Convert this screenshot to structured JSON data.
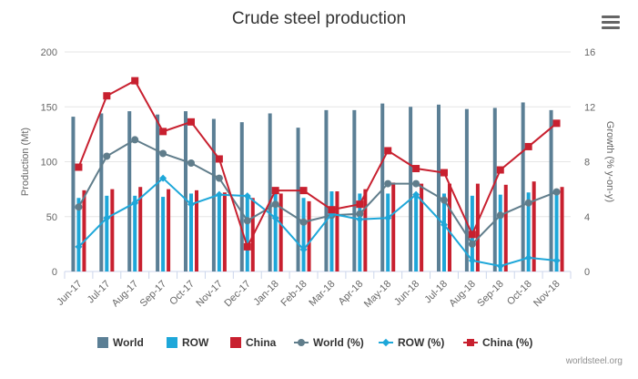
{
  "title": "Crude steel production",
  "menu_icon": "hamburger-menu-icon",
  "credit": "worldsteel.org",
  "chart_data": {
    "type": "bar",
    "title": "Crude steel production",
    "categories": [
      "Jun-17",
      "Jul-17",
      "Aug-17",
      "Sep-17",
      "Oct-17",
      "Nov-17",
      "Dec-17",
      "Jan-18",
      "Feb-18",
      "Mar-18",
      "Apr-18",
      "May-18",
      "Jun-18",
      "Jul-18",
      "Aug-18",
      "Sep-18",
      "Oct-18",
      "Nov-18"
    ],
    "y_left": {
      "label": "Production (Mt)",
      "min": 0,
      "max": 200,
      "ticks": [
        0,
        50,
        100,
        150,
        200
      ]
    },
    "y_right": {
      "label": "Growth (% y-on-y)",
      "min": 0,
      "max": 16,
      "ticks": [
        0,
        4,
        8,
        12,
        16
      ]
    },
    "grid": true,
    "legend_position": "bottom",
    "series": [
      {
        "name": "World",
        "type": "bar",
        "axis": "left",
        "color": "#5b7f95",
        "values": [
          141,
          144,
          146,
          143,
          146,
          139,
          136,
          144,
          131,
          147,
          147,
          153,
          150,
          152,
          148,
          149,
          154,
          147
        ]
      },
      {
        "name": "ROW",
        "type": "bar",
        "axis": "left",
        "color": "#1ea7d9",
        "values": [
          67,
          69,
          69,
          68,
          71,
          69,
          68,
          71,
          67,
          73,
          71,
          71,
          70,
          71,
          69,
          70,
          72,
          71
        ]
      },
      {
        "name": "China",
        "type": "bar",
        "axis": "left",
        "color": "#c8202f",
        "values": [
          74,
          75,
          77,
          75,
          74,
          72,
          67,
          71,
          64,
          73,
          75,
          81,
          80,
          80,
          80,
          79,
          82,
          77
        ]
      },
      {
        "name": "World (%)",
        "type": "line",
        "axis": "right",
        "color": "#607d8b",
        "marker": "circle",
        "values": [
          4.7,
          8.4,
          9.6,
          8.6,
          7.9,
          6.8,
          3.7,
          4.9,
          3.6,
          4.1,
          4.2,
          6.4,
          6.4,
          5.2,
          2.0,
          4.1,
          5.0,
          5.8
        ]
      },
      {
        "name": "ROW (%)",
        "type": "line",
        "axis": "right",
        "color": "#1ea7d9",
        "marker": "diamond",
        "values": [
          1.8,
          3.9,
          5.0,
          6.8,
          4.9,
          5.6,
          5.5,
          3.9,
          1.6,
          4.2,
          3.8,
          3.9,
          5.6,
          3.4,
          0.8,
          0.4,
          1.0,
          0.8
        ]
      },
      {
        "name": "China (%)",
        "type": "line",
        "axis": "right",
        "color": "#c8202f",
        "marker": "square",
        "values": [
          7.6,
          12.8,
          13.9,
          10.2,
          10.9,
          8.2,
          1.8,
          5.9,
          5.9,
          4.5,
          4.9,
          8.8,
          7.5,
          7.2,
          2.7,
          7.4,
          9.1,
          10.8
        ]
      }
    ]
  }
}
